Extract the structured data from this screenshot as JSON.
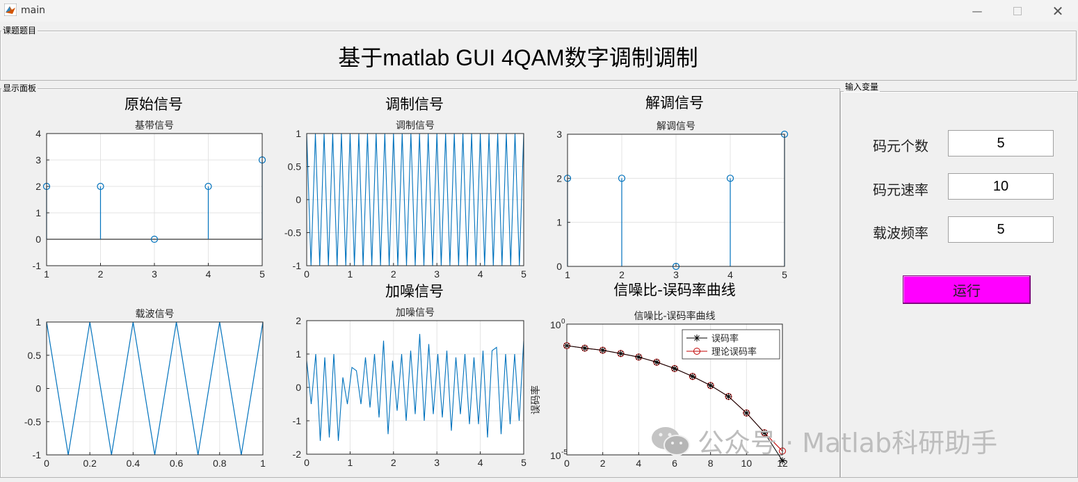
{
  "window": {
    "title": "main"
  },
  "panels": {
    "title_panel": "课题题目",
    "display_panel": "显示面板",
    "input_panel": "输入变量"
  },
  "heading": "基于matlab GUI 4QAM数字调制调制",
  "sections": {
    "original": "原始信号",
    "modulated": "调制信号",
    "demodulated": "解调信号",
    "noisy": "加噪信号",
    "ber_curve": "信噪比-误码率曲线"
  },
  "inputs": [
    {
      "label": "码元个数",
      "value": "5"
    },
    {
      "label": "码元速率",
      "value": "10"
    },
    {
      "label": "载波频率",
      "value": "5"
    }
  ],
  "run_button": "运行",
  "watermark": "公众号 · Matlab科研助手",
  "colors": {
    "line": "#0072bd",
    "ber_measured": "#000000",
    "ber_theory": "#c00000",
    "run_button": "#ff00ff"
  },
  "chart_data": [
    {
      "id": "baseband",
      "type": "stem",
      "title": "基带信号",
      "x": [
        1,
        2,
        3,
        4,
        5
      ],
      "y": [
        2,
        2,
        0,
        2,
        3
      ],
      "xlim": [
        1,
        5
      ],
      "ylim": [
        -1,
        4
      ],
      "xticks": [
        "1",
        "2",
        "3",
        "4",
        "5"
      ],
      "yticks": [
        "-1",
        "0",
        "1",
        "2",
        "3",
        "4"
      ],
      "grid": true
    },
    {
      "id": "modulated",
      "type": "line",
      "title": "调制信号",
      "description": "triangle wave, period 0.2",
      "period": 0.2,
      "amplitude": 1,
      "xlim": [
        0,
        5
      ],
      "ylim": [
        -1,
        1
      ],
      "xticks": [
        "0",
        "1",
        "2",
        "3",
        "4",
        "5"
      ],
      "yticks": [
        "-1",
        "-0.5",
        "0",
        "0.5",
        "1"
      ],
      "grid": true
    },
    {
      "id": "demodulated",
      "type": "stem",
      "title": "解调信号",
      "x": [
        1,
        2,
        3,
        4,
        5
      ],
      "y": [
        2,
        2,
        0,
        2,
        3
      ],
      "xlim": [
        1,
        5
      ],
      "ylim": [
        0,
        3
      ],
      "xticks": [
        "1",
        "2",
        "3",
        "4",
        "5"
      ],
      "yticks": [
        "0",
        "1",
        "2",
        "3"
      ],
      "grid": true
    },
    {
      "id": "carrier",
      "type": "line",
      "title": "载波信号",
      "x": [
        0,
        0.1,
        0.2,
        0.3,
        0.4,
        0.5,
        0.6,
        0.7,
        0.8,
        0.9,
        1.0
      ],
      "y": [
        1,
        -1,
        1,
        -1,
        1,
        -1,
        1,
        -1,
        1,
        -1,
        1
      ],
      "xlim": [
        0,
        1
      ],
      "ylim": [
        -1,
        1
      ],
      "xticks": [
        "0",
        "0.2",
        "0.4",
        "0.6",
        "0.8",
        "1"
      ],
      "yticks": [
        "-1",
        "-0.5",
        "0",
        "0.5",
        "1"
      ],
      "grid": true
    },
    {
      "id": "noisy",
      "type": "line",
      "title": "加噪信号",
      "y": [
        0.8,
        -0.5,
        1.0,
        -1.6,
        0.9,
        -1.5,
        1.0,
        -1.6,
        0.3,
        -0.5,
        0.6,
        0.5,
        -0.5,
        0.9,
        -0.6,
        1.0,
        -0.9,
        1.4,
        -1.4,
        0.8,
        -0.7,
        1.0,
        -1.0,
        1.1,
        -0.8,
        1.6,
        -1.0,
        1.3,
        -0.8,
        1.0,
        -0.9,
        1.1,
        -1.3,
        0.9,
        -0.8,
        1.0,
        -1.1,
        0.9,
        -1.1,
        1.1,
        -1.5,
        1.1,
        1.2,
        -1.4,
        1.0,
        -1.1,
        1.0,
        -1.0,
        1.4
      ],
      "xlim": [
        0,
        5
      ],
      "ylim": [
        -2,
        2
      ],
      "xticks": [
        "0",
        "1",
        "2",
        "3",
        "4",
        "5"
      ],
      "yticks": [
        "-2",
        "-1",
        "0",
        "1",
        "2"
      ],
      "grid": true
    },
    {
      "id": "ber",
      "type": "line",
      "title": "信噪比-误码率曲线",
      "ylabel": "误码率",
      "yscale": "log",
      "x": [
        0,
        1,
        2,
        3,
        4,
        5,
        6,
        7,
        8,
        9,
        10,
        11,
        12
      ],
      "series": [
        {
          "name": "误码率",
          "y": [
            0.15,
            0.12,
            0.1,
            0.075,
            0.055,
            0.035,
            0.02,
            0.01,
            0.0045,
            0.0017,
            0.0004,
            7e-05,
            6e-06
          ]
        },
        {
          "name": "理论误码率",
          "y": [
            0.15,
            0.12,
            0.1,
            0.075,
            0.055,
            0.035,
            0.02,
            0.01,
            0.0045,
            0.0017,
            0.0004,
            7e-05,
            1.4e-05
          ]
        }
      ],
      "xlim": [
        0,
        12
      ],
      "ylim": [
        1e-05,
        1
      ],
      "xticks": [
        "0",
        "2",
        "4",
        "6",
        "8",
        "10",
        "12"
      ],
      "yticks": [
        {
          "base": "10",
          "exp": "0"
        },
        {
          "base": "10",
          "exp": "-5"
        }
      ],
      "legend": "top-right",
      "grid": true
    }
  ]
}
